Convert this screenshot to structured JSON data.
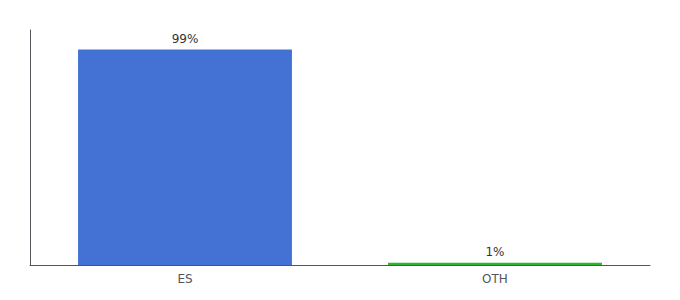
{
  "chart_data": {
    "type": "bar",
    "categories": [
      "ES",
      "OTH"
    ],
    "values": [
      99,
      1
    ],
    "value_labels": [
      "99%",
      "1%"
    ],
    "colors": [
      "#4472d4",
      "#2db52d"
    ],
    "ylim": [
      0,
      108
    ],
    "data_labels": true,
    "tick_labels": "x",
    "grid": false
  }
}
